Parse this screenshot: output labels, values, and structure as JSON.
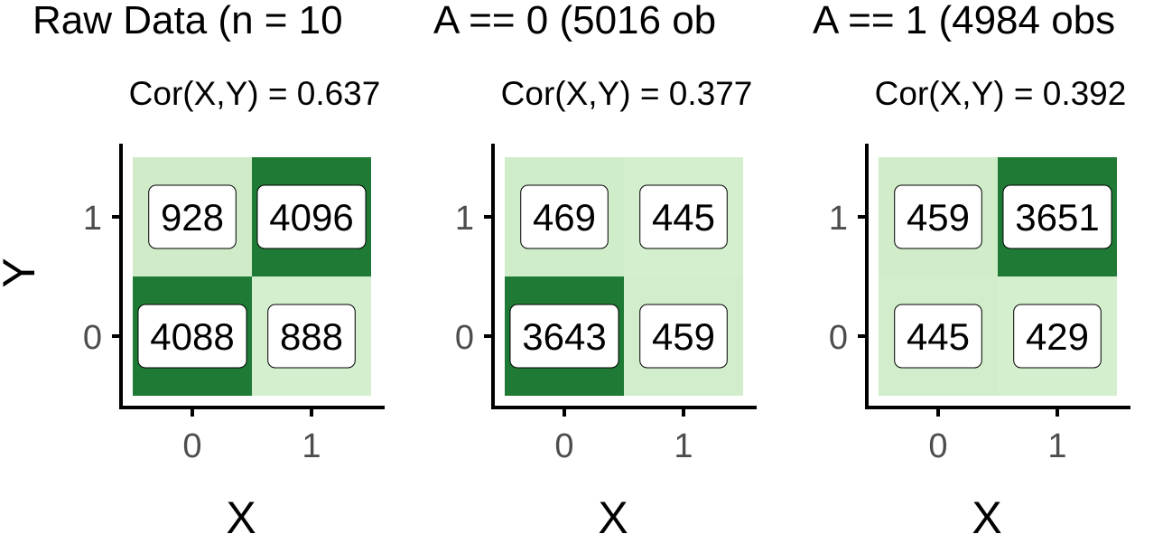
{
  "chart_data": [
    {
      "type": "heatmap",
      "title": "Raw Data (n = 10",
      "subtitle": "Cor(X,Y) = 0.637",
      "xlabel": "X",
      "ylabel": "Y",
      "x_categories": [
        "0",
        "1"
      ],
      "y_categories": [
        "0",
        "1"
      ],
      "cells": [
        {
          "x": "0",
          "y": "1",
          "count": 928
        },
        {
          "x": "1",
          "y": "1",
          "count": 4096
        },
        {
          "x": "0",
          "y": "0",
          "count": 4088
        },
        {
          "x": "1",
          "y": "0",
          "count": 888
        }
      ]
    },
    {
      "type": "heatmap",
      "title": "A == 0 (5016 ob",
      "subtitle": "Cor(X,Y) = 0.377",
      "xlabel": "X",
      "ylabel": "",
      "x_categories": [
        "0",
        "1"
      ],
      "y_categories": [
        "0",
        "1"
      ],
      "cells": [
        {
          "x": "0",
          "y": "1",
          "count": 469
        },
        {
          "x": "1",
          "y": "1",
          "count": 445
        },
        {
          "x": "0",
          "y": "0",
          "count": 3643
        },
        {
          "x": "1",
          "y": "0",
          "count": 459
        }
      ]
    },
    {
      "type": "heatmap",
      "title": "A == 1 (4984 obs",
      "subtitle": "Cor(X,Y) = 0.392",
      "xlabel": "X",
      "ylabel": "",
      "x_categories": [
        "0",
        "1"
      ],
      "y_categories": [
        "0",
        "1"
      ],
      "cells": [
        {
          "x": "0",
          "y": "1",
          "count": 459
        },
        {
          "x": "1",
          "y": "1",
          "count": 3651
        },
        {
          "x": "0",
          "y": "0",
          "count": 445
        },
        {
          "x": "1",
          "y": "0",
          "count": 429
        }
      ]
    }
  ],
  "colors": {
    "low": "#d4efcd",
    "high": "#1f7a35",
    "axis": "#000000",
    "label_box": "#ffffff"
  }
}
